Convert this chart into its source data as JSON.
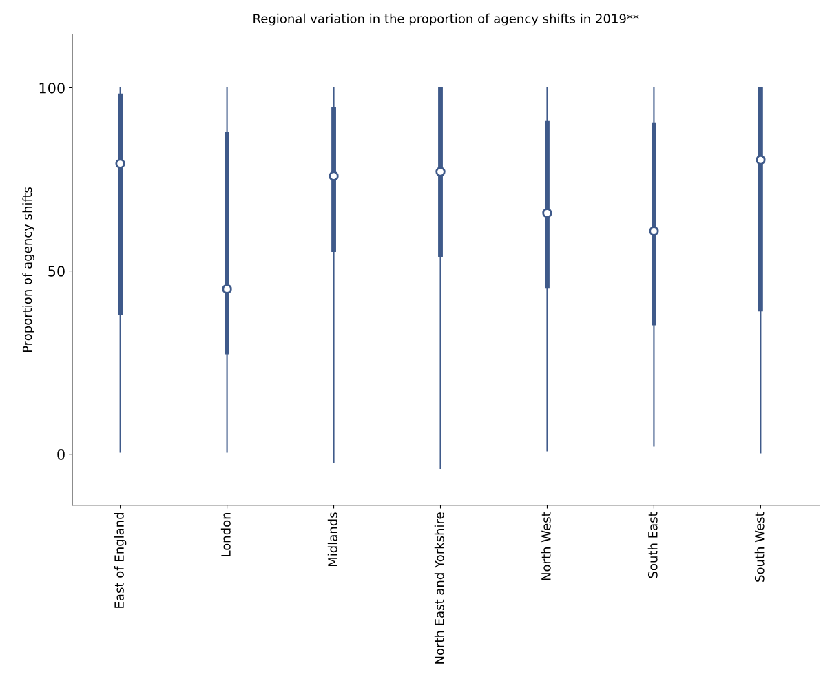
{
  "chart_data": {
    "type": "box",
    "title": "Regional variation in the proportion of agency shifts in 2019**",
    "ylabel": "Proportion of agency shifts",
    "categories": [
      "East of England",
      "London",
      "Midlands",
      "North East and Yorkshire",
      "North West",
      "South East",
      "South West"
    ],
    "color": "#3f5a8a",
    "boxes": [
      {
        "low": 0.6,
        "q1": 38,
        "median": 79.3,
        "q3": 98.3,
        "high": 100
      },
      {
        "low": 0.6,
        "q1": 27.4,
        "median": 45.1,
        "q3": 87.8,
        "high": 100
      },
      {
        "low": -2.3,
        "q1": 55.3,
        "median": 75.9,
        "q3": 94.5,
        "high": 100
      },
      {
        "low": -3.8,
        "q1": 54,
        "median": 77.1,
        "q3": 100,
        "high": 100
      },
      {
        "low": 1,
        "q1": 45.5,
        "median": 65.8,
        "q3": 90.8,
        "high": 100
      },
      {
        "low": 2.3,
        "q1": 35.3,
        "median": 60.9,
        "q3": 90.4,
        "high": 100
      },
      {
        "low": 0.4,
        "q1": 39.1,
        "median": 80.3,
        "q3": 100,
        "high": 100
      }
    ],
    "ylim": [
      -13.9,
      114.5
    ],
    "yticks": [
      0,
      50,
      100
    ],
    "grid": false
  }
}
